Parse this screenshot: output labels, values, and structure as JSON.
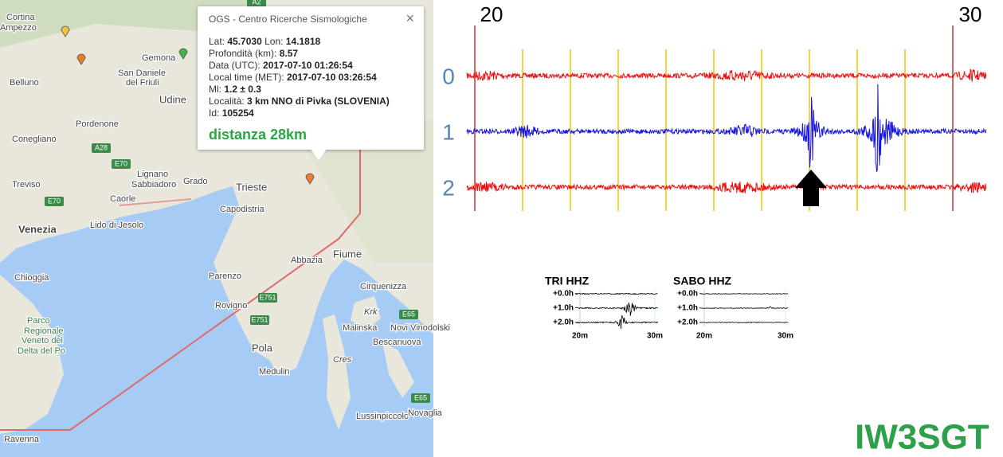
{
  "map": {
    "labels": [
      "Cortina",
      "Ampezzo",
      "Gemona",
      "San Daniele",
      "del Friuli",
      "Belluno",
      "Udine",
      "Pordenone",
      "Conegliano",
      "Lignano",
      "Sabbiadoro",
      "Grado",
      "Treviso",
      "Caorle",
      "Trieste",
      "Capodistria",
      "Venezia",
      "Lido di Jesolo",
      "Chioggia",
      "Parenzo",
      "Abbazia",
      "Fiume",
      "Cirquenizza",
      "Rovigno",
      "Krk",
      "Malinska",
      "Novi Vinodolski",
      "Pola",
      "Bescanuova",
      "Cres",
      "Medulin",
      "Lussinpiccolo",
      "Novaglia",
      "Ravenna",
      "Parco",
      "Regionale",
      "Veneto del",
      "Delta del Po"
    ],
    "road_labels": [
      "A2",
      "A28",
      "E70",
      "E70",
      "E751",
      "E751",
      "E65",
      "E65"
    ]
  },
  "popup": {
    "title": "OGS - Centro Ricerche Sismologiche",
    "close": "×",
    "rows": [
      [
        [
          "Lat:",
          "45.7030"
        ],
        [
          "Lon:",
          "14.1818"
        ]
      ],
      [
        [
          "Profondità (km):",
          "8.57"
        ]
      ],
      [
        [
          "Data (UTC):",
          "2017-07-10 01:26:54"
        ]
      ],
      [
        [
          "Local time (MET):",
          "2017-07-10 03:26:54"
        ]
      ],
      [
        [
          "Ml:",
          "1.2 ± 0.3"
        ]
      ],
      [
        [
          "Località:",
          "3 km NNO di Pivka (SLOVENIA)"
        ]
      ],
      [
        [
          "Id:",
          "105254"
        ]
      ]
    ],
    "distance": "distanza 28km"
  },
  "seismogram": {
    "minute_ticks": [
      20,
      30
    ],
    "channels": [
      "0",
      "1",
      "2"
    ]
  },
  "helicorders": [
    {
      "title": "TRI HHZ",
      "rows": [
        "+0.0h",
        "+1.0h",
        "+2.0h"
      ],
      "axis": [
        "20m",
        "30m"
      ]
    },
    {
      "title": "SABO HHZ",
      "rows": [
        "+0.0h",
        "+1.0h",
        "+2.0h"
      ],
      "axis": [
        "20m",
        "30m"
      ]
    }
  ],
  "callsign": "IW3SGT"
}
